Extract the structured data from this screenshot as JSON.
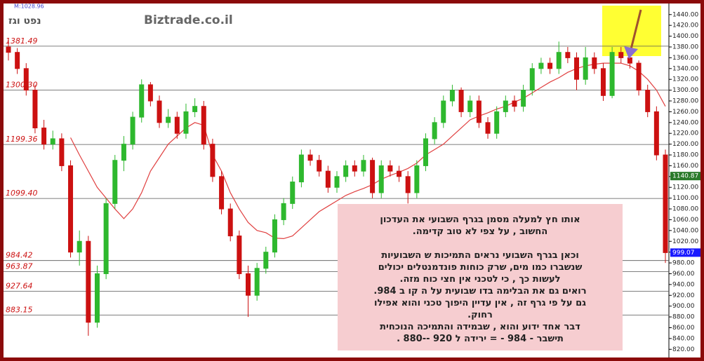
{
  "header": {
    "symbol_title": "נפט וגז",
    "site": "Biztrade.co.il",
    "marker": "M:1028.96"
  },
  "chart_data": {
    "type": "candlestick",
    "ylim": [
      810,
      1454
    ],
    "yticks": [
      {
        "value": 820,
        "label": "820.00"
      },
      {
        "value": 840,
        "label": "840.00"
      },
      {
        "value": 860,
        "label": "860.00"
      },
      {
        "value": 880,
        "label": "880.00"
      },
      {
        "value": 900,
        "label": "900.00"
      },
      {
        "value": 920,
        "label": "920.00"
      },
      {
        "value": 940,
        "label": "940.00"
      },
      {
        "value": 960,
        "label": "960.00"
      },
      {
        "value": 980,
        "label": "980.00"
      },
      {
        "value": 1000,
        "label": "1000.00"
      },
      {
        "value": 1020,
        "label": "1020.00"
      },
      {
        "value": 1040,
        "label": "1040.00"
      },
      {
        "value": 1060,
        "label": "1060.00"
      },
      {
        "value": 1080,
        "label": "1080.00"
      },
      {
        "value": 1100,
        "label": "1100.00"
      },
      {
        "value": 1120,
        "label": "1120.00"
      },
      {
        "value": 1140,
        "label": "1140.00"
      },
      {
        "value": 1160,
        "label": "1160.00"
      },
      {
        "value": 1180,
        "label": "1180.00"
      },
      {
        "value": 1200,
        "label": "1200.00"
      },
      {
        "value": 1220,
        "label": "1220.00"
      },
      {
        "value": 1240,
        "label": "1240.00"
      },
      {
        "value": 1260,
        "label": "1260.00"
      },
      {
        "value": 1280,
        "label": "1280.00"
      },
      {
        "value": 1300,
        "label": "1300.00"
      },
      {
        "value": 1320,
        "label": "1320.00"
      },
      {
        "value": 1340,
        "label": "1340.00"
      },
      {
        "value": 1360,
        "label": "1360.00"
      },
      {
        "value": 1380,
        "label": "1380.00"
      },
      {
        "value": 1400,
        "label": "1400.00"
      },
      {
        "value": 1420,
        "label": "1420.00"
      },
      {
        "value": 1440,
        "label": "1440.00"
      }
    ],
    "up_color": "#2eb82e",
    "down_color": "#cc1111",
    "candles": [
      [
        1380,
        1395,
        1355,
        1370
      ],
      [
        1370,
        1378,
        1330,
        1340
      ],
      [
        1340,
        1350,
        1290,
        1300
      ],
      [
        1300,
        1310,
        1220,
        1230
      ],
      [
        1230,
        1245,
        1190,
        1200
      ],
      [
        1200,
        1225,
        1190,
        1210
      ],
      [
        1210,
        1220,
        1150,
        1160
      ],
      [
        1160,
        1170,
        990,
        1000
      ],
      [
        1000,
        1040,
        975,
        1020
      ],
      [
        1020,
        1030,
        845,
        870
      ],
      [
        870,
        975,
        860,
        960
      ],
      [
        960,
        1100,
        950,
        1090
      ],
      [
        1090,
        1180,
        1080,
        1170
      ],
      [
        1170,
        1215,
        1150,
        1200
      ],
      [
        1200,
        1260,
        1190,
        1250
      ],
      [
        1250,
        1320,
        1240,
        1310
      ],
      [
        1310,
        1315,
        1270,
        1280
      ],
      [
        1280,
        1290,
        1230,
        1240
      ],
      [
        1240,
        1265,
        1230,
        1250
      ],
      [
        1250,
        1260,
        1210,
        1220
      ],
      [
        1220,
        1275,
        1210,
        1260
      ],
      [
        1260,
        1285,
        1250,
        1270
      ],
      [
        1270,
        1280,
        1190,
        1200
      ],
      [
        1200,
        1210,
        1130,
        1140
      ],
      [
        1140,
        1150,
        1070,
        1080
      ],
      [
        1080,
        1090,
        1020,
        1030
      ],
      [
        1030,
        1040,
        950,
        960
      ],
      [
        960,
        975,
        880,
        920
      ],
      [
        920,
        980,
        910,
        970
      ],
      [
        970,
        1010,
        960,
        1000
      ],
      [
        1000,
        1070,
        990,
        1060
      ],
      [
        1060,
        1100,
        1050,
        1090
      ],
      [
        1090,
        1140,
        1080,
        1130
      ],
      [
        1130,
        1190,
        1120,
        1180
      ],
      [
        1180,
        1190,
        1160,
        1170
      ],
      [
        1170,
        1180,
        1140,
        1150
      ],
      [
        1150,
        1160,
        1110,
        1120
      ],
      [
        1120,
        1150,
        1110,
        1140
      ],
      [
        1140,
        1170,
        1130,
        1160
      ],
      [
        1160,
        1170,
        1140,
        1150
      ],
      [
        1150,
        1180,
        1140,
        1170
      ],
      [
        1170,
        1175,
        1100,
        1110
      ],
      [
        1110,
        1170,
        1100,
        1160
      ],
      [
        1160,
        1170,
        1140,
        1150
      ],
      [
        1150,
        1160,
        1130,
        1140
      ],
      [
        1140,
        1150,
        1090,
        1110
      ],
      [
        1110,
        1170,
        1100,
        1160
      ],
      [
        1160,
        1220,
        1150,
        1210
      ],
      [
        1210,
        1250,
        1200,
        1240
      ],
      [
        1240,
        1290,
        1230,
        1280
      ],
      [
        1280,
        1310,
        1270,
        1300
      ],
      [
        1300,
        1305,
        1250,
        1260
      ],
      [
        1260,
        1290,
        1250,
        1280
      ],
      [
        1280,
        1290,
        1230,
        1240
      ],
      [
        1240,
        1250,
        1210,
        1220
      ],
      [
        1220,
        1270,
        1210,
        1260
      ],
      [
        1260,
        1290,
        1250,
        1280
      ],
      [
        1280,
        1290,
        1260,
        1270
      ],
      [
        1270,
        1310,
        1260,
        1300
      ],
      [
        1300,
        1350,
        1290,
        1340
      ],
      [
        1340,
        1360,
        1330,
        1350
      ],
      [
        1350,
        1360,
        1330,
        1340
      ],
      [
        1340,
        1390,
        1330,
        1370
      ],
      [
        1370,
        1380,
        1350,
        1360
      ],
      [
        1360,
        1370,
        1300,
        1320
      ],
      [
        1320,
        1380,
        1310,
        1360
      ],
      [
        1360,
        1370,
        1330,
        1340
      ],
      [
        1340,
        1350,
        1280,
        1290
      ],
      [
        1290,
        1380,
        1285,
        1370
      ],
      [
        1370,
        1380,
        1350,
        1360
      ],
      [
        1360,
        1370,
        1340,
        1350
      ],
      [
        1350,
        1355,
        1290,
        1300
      ],
      [
        1300,
        1310,
        1250,
        1260
      ],
      [
        1260,
        1270,
        1170,
        1180
      ],
      [
        1180,
        1190,
        980,
        999.07
      ]
    ],
    "moving_average": {
      "color": "#e04040",
      "values": [
        null,
        null,
        null,
        null,
        null,
        null,
        null,
        1212,
        1180,
        1150,
        1120,
        1100,
        1080,
        1062,
        1080,
        1110,
        1150,
        1175,
        1200,
        1215,
        1230,
        1240,
        1235,
        1180,
        1150,
        1110,
        1080,
        1055,
        1040,
        1036,
        1026,
        1025,
        1030,
        1045,
        1060,
        1075,
        1085,
        1095,
        1105,
        1112,
        1118,
        1125,
        1135,
        1142,
        1148,
        1155,
        1165,
        1180,
        1190,
        1200,
        1215,
        1230,
        1245,
        1252,
        1258,
        1265,
        1270,
        1278,
        1285,
        1295,
        1305,
        1315,
        1323,
        1333,
        1340,
        1345,
        1348,
        1350,
        1350,
        1350,
        1345,
        1335,
        1320,
        1300,
        1270
      ]
    },
    "levels": [
      1381.49,
      {
        "value": 1300.3,
        "label": "1300.30"
      },
      1199.36,
      {
        "value": 1099.4,
        "label": "1099.40"
      },
      984.42,
      963.87,
      927.64,
      883.15
    ],
    "price_tags": [
      {
        "value": 1140.87,
        "color": "#2a7a2a"
      },
      {
        "value": 999.07,
        "color": "#1a1aff"
      }
    ]
  },
  "note": {
    "paragraphs": [
      [
        "אותו חץ למעלה  מסמן בגרף השבועי את  העדכון",
        "החשוב  , על  צפי לא טוב קדימה."
      ],
      [
        "וכאן בגרף השבועי  נראים התמיכות ש השבועיות",
        "שנשברו כמו מים, שרק   כוחות פונדמנטלים יכולים",
        "לעשות כך , כי לטכני  אין  חצי כוח מזה.",
        "רואים גם את הבלימה  בדו שבועית על ה קו  ב 984.",
        "גם על פי  גרף זה , אין עדיין היפוך טכני והוא אפילו",
        "רחוק.",
        "דבר אחד ידוע והוא ,  שבמידה והתמיכה הנוכחית",
        "תישבר - 984 - =  ירידה  ל  920  --880 ."
      ]
    ]
  }
}
